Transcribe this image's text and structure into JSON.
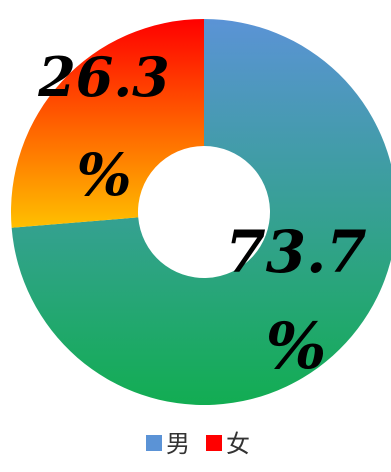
{
  "chart_data": {
    "type": "pie",
    "donut": true,
    "title": "",
    "slices": [
      {
        "name": "男",
        "value": 73.7,
        "value_text": "73.7",
        "unit": "%",
        "color_top": "#5b93d6",
        "color_bottom": "#12ad52"
      },
      {
        "name": "女",
        "value": 26.3,
        "value_text": "26.3",
        "unit": "%",
        "color_top": "#ff0000",
        "color_bottom": "#ffc000"
      }
    ],
    "legend": {
      "placement": "bottom",
      "entries": [
        {
          "name": "男",
          "color": "#5b93d6"
        },
        {
          "name": "女",
          "color": "#ff0000"
        }
      ]
    }
  }
}
